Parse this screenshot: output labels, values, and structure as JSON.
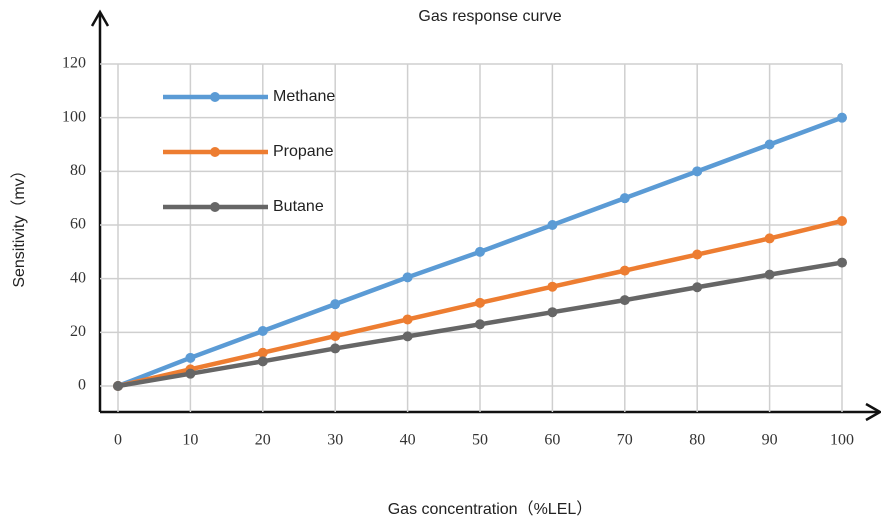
{
  "chart_data": {
    "type": "line",
    "title": "Gas response curve",
    "x_label": "Gas concentration（%LEL）",
    "y_label": "Sensitivity（mv）",
    "x": [
      0,
      10,
      20,
      30,
      40,
      50,
      60,
      70,
      80,
      90,
      100
    ],
    "series": [
      {
        "name": "Methane",
        "color": "#5b9bd5",
        "values": [
          0,
          10.5,
          20.5,
          30.5,
          40.5,
          50,
          60,
          70,
          80,
          90,
          100
        ]
      },
      {
        "name": "Propane",
        "color": "#ed7d31",
        "values": [
          0,
          6.2,
          12.4,
          18.6,
          24.8,
          31,
          37,
          43,
          49,
          55,
          61.5
        ]
      },
      {
        "name": "Butane",
        "color": "#666666",
        "values": [
          0,
          4.6,
          9.2,
          14,
          18.5,
          23,
          27.5,
          32,
          36.8,
          41.5,
          46
        ]
      }
    ],
    "xlim": [
      0,
      100
    ],
    "xticks": [
      0,
      10,
      20,
      30,
      40,
      50,
      60,
      70,
      80,
      90,
      100
    ],
    "ylim": [
      0,
      120
    ],
    "yticks": [
      0,
      20,
      40,
      60,
      80,
      100,
      120
    ],
    "grid": true,
    "legend": "upper left"
  }
}
